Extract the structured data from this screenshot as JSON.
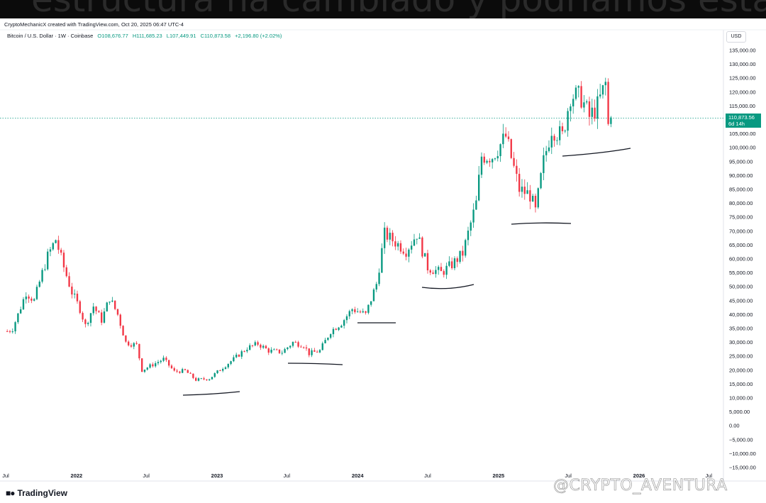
{
  "header": {
    "overlay_text": "estructura ha cambiado y podríamos estar",
    "credit": "CryptoMechanicX created with TradingView.com, Oct 20, 2025 06:47 UTC-4",
    "symbol": "Bitcoin / U.S. Dollar · 1W · Coinbase",
    "ohlc": {
      "open": "O108,676.77",
      "high": "H111,685.23",
      "low": "L107,449.91",
      "close": "C110,873.58",
      "change": "+2,196.80 (+2.02%)"
    },
    "currency": "USD"
  },
  "price_tag": {
    "price": "110,873.56",
    "countdown": "6d 14h"
  },
  "footer": {
    "logo": "TradingView",
    "watermark": "@CRYPTO_AVENTURA"
  },
  "colors": {
    "up": "#089981",
    "down": "#f23645",
    "last_price_line": "#089981",
    "annotation": "#131722"
  },
  "chart_data": {
    "type": "candlestick",
    "ylim": [
      -15000,
      140000
    ],
    "ytick_values": [
      135000,
      130000,
      125000,
      120000,
      115000,
      110000,
      105000,
      100000,
      95000,
      90000,
      85000,
      80000,
      75000,
      70000,
      65000,
      60000,
      55000,
      50000,
      45000,
      40000,
      35000,
      30000,
      25000,
      20000,
      15000,
      10000,
      5000,
      0,
      -5000,
      -10000,
      -15000
    ],
    "ytick_labels": [
      "135,000.00",
      "130,000.00",
      "125,000.00",
      "120,000.00",
      "115,000.00",
      "110,000.00",
      "105,000.00",
      "100,000.00",
      "95,000.00",
      "90,000.00",
      "85,000.00",
      "80,000.00",
      "75,000.00",
      "70,000.00",
      "65,000.00",
      "60,000.00",
      "55,000.00",
      "50,000.00",
      "45,000.00",
      "40,000.00",
      "35,000.00",
      "30,000.00",
      "25,000.00",
      "20,000.00",
      "15,000.00",
      "10,000.00",
      "5,000.00",
      "0.00",
      "−5,000.00",
      "−10,000.00",
      "−15,000.00"
    ],
    "xticks": [
      {
        "label": "Jul",
        "date": "2021-07-01"
      },
      {
        "label": "2022",
        "date": "2022-01-01"
      },
      {
        "label": "Jul",
        "date": "2022-07-01"
      },
      {
        "label": "2023",
        "date": "2023-01-01"
      },
      {
        "label": "Jul",
        "date": "2023-07-01"
      },
      {
        "label": "2024",
        "date": "2024-01-01"
      },
      {
        "label": "Jul",
        "date": "2024-07-01"
      },
      {
        "label": "2025",
        "date": "2025-01-01"
      },
      {
        "label": "Jul",
        "date": "2025-07-01"
      },
      {
        "label": "2026",
        "date": "2026-01-01"
      },
      {
        "label": "Jul",
        "date": "2026-07-01"
      }
    ],
    "last_price": 110873.56,
    "series_closes": [
      {
        "date": "2021-07-05",
        "close": 34000
      },
      {
        "date": "2021-07-19",
        "close": 35000
      },
      {
        "date": "2021-08-02",
        "close": 40000
      },
      {
        "date": "2021-08-23",
        "close": 48000
      },
      {
        "date": "2021-09-13",
        "close": 45000
      },
      {
        "date": "2021-10-04",
        "close": 55000
      },
      {
        "date": "2021-10-18",
        "close": 61000
      },
      {
        "date": "2021-11-08",
        "close": 67000
      },
      {
        "date": "2021-11-29",
        "close": 57000
      },
      {
        "date": "2021-12-20",
        "close": 48000
      },
      {
        "date": "2022-01-10",
        "close": 42000
      },
      {
        "date": "2022-01-24",
        "close": 36000
      },
      {
        "date": "2022-02-14",
        "close": 43000
      },
      {
        "date": "2022-03-07",
        "close": 38000
      },
      {
        "date": "2022-03-28",
        "close": 46000
      },
      {
        "date": "2022-04-18",
        "close": 40000
      },
      {
        "date": "2022-05-09",
        "close": 30000
      },
      {
        "date": "2022-06-06",
        "close": 29000
      },
      {
        "date": "2022-06-20",
        "close": 20000
      },
      {
        "date": "2022-07-18",
        "close": 22000
      },
      {
        "date": "2022-08-15",
        "close": 24000
      },
      {
        "date": "2022-09-12",
        "close": 19500
      },
      {
        "date": "2022-10-10",
        "close": 19800
      },
      {
        "date": "2022-11-07",
        "close": 16500
      },
      {
        "date": "2022-12-12",
        "close": 17000
      },
      {
        "date": "2023-01-16",
        "close": 21000
      },
      {
        "date": "2023-02-13",
        "close": 24000
      },
      {
        "date": "2023-03-20",
        "close": 28000
      },
      {
        "date": "2023-04-17",
        "close": 29500
      },
      {
        "date": "2023-05-15",
        "close": 27000
      },
      {
        "date": "2023-06-19",
        "close": 26500
      },
      {
        "date": "2023-07-17",
        "close": 30000
      },
      {
        "date": "2023-08-14",
        "close": 29000
      },
      {
        "date": "2023-08-28",
        "close": 26000
      },
      {
        "date": "2023-09-25",
        "close": 27000
      },
      {
        "date": "2023-10-23",
        "close": 34000
      },
      {
        "date": "2023-11-20",
        "close": 37000
      },
      {
        "date": "2023-12-18",
        "close": 42000
      },
      {
        "date": "2024-01-22",
        "close": 40000
      },
      {
        "date": "2024-02-19",
        "close": 51000
      },
      {
        "date": "2024-03-11",
        "close": 69000
      },
      {
        "date": "2024-04-08",
        "close": 66000
      },
      {
        "date": "2024-05-06",
        "close": 63000
      },
      {
        "date": "2024-06-03",
        "close": 69000
      },
      {
        "date": "2024-07-01",
        "close": 57000
      },
      {
        "date": "2024-08-05",
        "close": 55000
      },
      {
        "date": "2024-09-02",
        "close": 58000
      },
      {
        "date": "2024-09-30",
        "close": 62000
      },
      {
        "date": "2024-11-04",
        "close": 80000
      },
      {
        "date": "2024-11-18",
        "close": 97000
      },
      {
        "date": "2024-12-16",
        "close": 97000
      },
      {
        "date": "2025-01-20",
        "close": 104000
      },
      {
        "date": "2025-02-24",
        "close": 85000
      },
      {
        "date": "2025-03-24",
        "close": 83000
      },
      {
        "date": "2025-04-07",
        "close": 77000
      },
      {
        "date": "2025-04-28",
        "close": 95000
      },
      {
        "date": "2025-05-19",
        "close": 107000
      },
      {
        "date": "2025-06-16",
        "close": 104000
      },
      {
        "date": "2025-07-07",
        "close": 119000
      },
      {
        "date": "2025-08-04",
        "close": 118000
      },
      {
        "date": "2025-08-25",
        "close": 111000
      },
      {
        "date": "2025-09-15",
        "close": 115000
      },
      {
        "date": "2025-10-06",
        "close": 123000
      },
      {
        "date": "2025-10-13",
        "close": 108000
      },
      {
        "date": "2025-10-20",
        "close": 110873
      }
    ]
  }
}
